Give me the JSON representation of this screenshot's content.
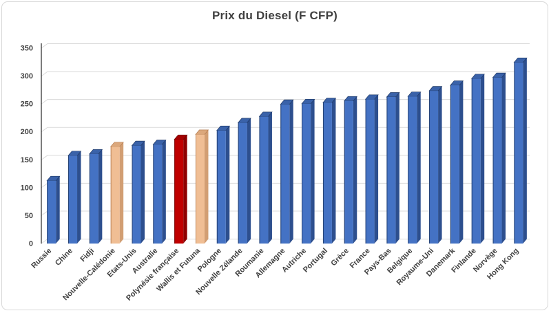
{
  "chart_data": {
    "type": "bar",
    "title": "Prix du Diesel (F CFP)",
    "xlabel": "",
    "ylabel": "",
    "unit": "F CFP",
    "categories": [
      "Russie",
      "Chine",
      "Fidji",
      "Nouvelle-Calédonie",
      "Etats-Unis",
      "Australie",
      "Polynésie française",
      "Wallis et Futuna",
      "Pologne",
      "Nouvelle Zélande",
      "Roumanie",
      "Allemagne",
      "Autriche",
      "Portugal",
      "Grèce",
      "France",
      "Pays-Bas",
      "Belgique",
      "Royaume-Uni",
      "Danemark",
      "Finlande",
      "Norvège",
      "Hong Kong"
    ],
    "values": [
      110,
      155,
      158,
      171,
      173,
      175,
      184,
      193,
      200,
      214,
      225,
      247,
      248,
      250,
      253,
      256,
      260,
      261,
      271,
      281,
      293,
      295,
      322
    ],
    "bar_colors": [
      "blue",
      "blue",
      "blue",
      "orange",
      "blue",
      "blue",
      "red",
      "orange",
      "blue",
      "blue",
      "blue",
      "blue",
      "blue",
      "blue",
      "blue",
      "blue",
      "blue",
      "blue",
      "blue",
      "blue",
      "blue",
      "blue",
      "blue"
    ],
    "palette": {
      "blue": {
        "front": "#4472C4",
        "top": "#3A62A9",
        "side": "#2D4F8E",
        "edge": "#1F3864"
      },
      "red": {
        "front": "#C00000",
        "top": "#A40000",
        "side": "#8E0000",
        "edge": "#6A0000"
      },
      "orange": {
        "front": "#F0BE94",
        "top": "#DCA87C",
        "side": "#D29E73",
        "edge": "#B47C51"
      }
    },
    "highlighted_bars": {
      "orange": [
        "Nouvelle-Calédonie",
        "Wallis et Futuna"
      ],
      "red": [
        "Polynésie française"
      ]
    },
    "yticks": [
      0,
      50,
      100,
      150,
      200,
      250,
      300,
      350
    ],
    "ylim": [
      0,
      350
    ],
    "grid": true,
    "legend": false,
    "style_3d": true,
    "colors": {
      "axis": "#262626",
      "gridline": "#D9D9D9",
      "tick_text": "#404040",
      "title_text": "#3F3F3F",
      "background": "#FFFFFF",
      "frame_border": "#D8D8D8"
    }
  }
}
